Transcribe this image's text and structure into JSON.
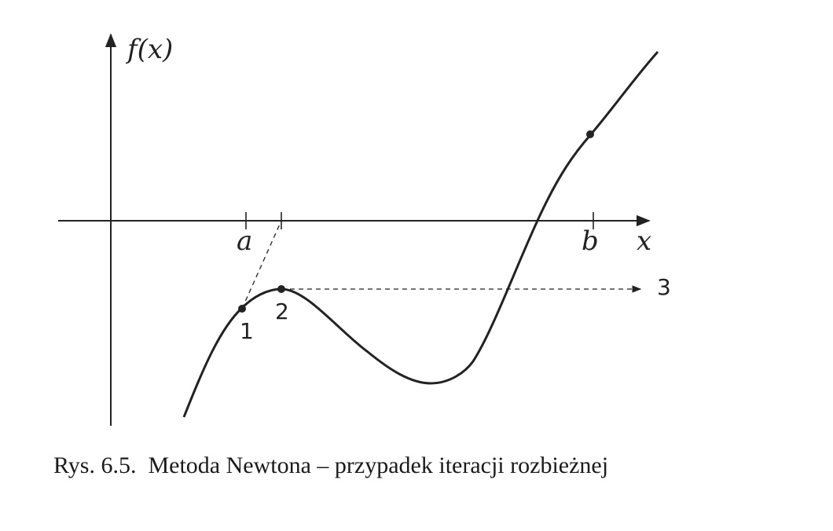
{
  "figure": {
    "y_axis_label": "f(x)",
    "x_axis_label": "x",
    "ticks": {
      "a": "a",
      "b": "b"
    },
    "points": {
      "p1": "1",
      "p2": "2",
      "p3": "3"
    },
    "caption": "Rys. 6.5.  Metoda Newtona – przypadek iteracji rozbieżnej"
  }
}
